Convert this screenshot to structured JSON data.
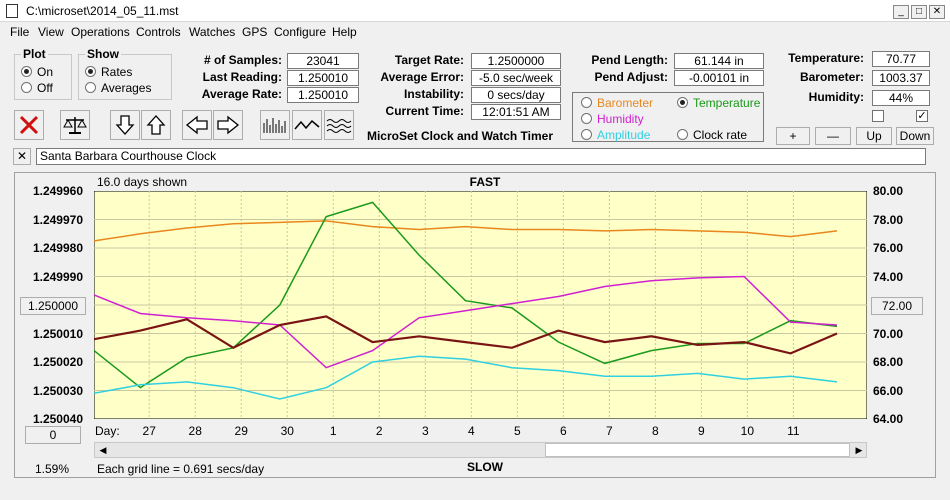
{
  "window": {
    "title": "C:\\microset\\2014_05_11.mst"
  },
  "menu": [
    "File",
    "View",
    "Operations",
    "Controls",
    "Watches",
    "GPS",
    "Configure",
    "Help"
  ],
  "plot_group": {
    "title": "Plot",
    "options": [
      {
        "label": "On",
        "selected": true
      },
      {
        "label": "Off",
        "selected": false
      }
    ]
  },
  "show_group": {
    "title": "Show",
    "options": [
      {
        "label": "Rates",
        "selected": true
      },
      {
        "label": "Averages",
        "selected": false
      }
    ]
  },
  "stats": {
    "samples_label": "# of Samples:",
    "samples": "23041",
    "last_reading_label": "Last Reading:",
    "last_reading": "1.250010",
    "average_rate_label": "Average Rate:",
    "average_rate": "1.250010",
    "target_rate_label": "Target Rate:",
    "target_rate": "1.2500000",
    "average_error_label": "Average Error:",
    "average_error": "-5.0 sec/week",
    "instability_label": "Instability:",
    "instability": "0 secs/day",
    "current_time_label": "Current Time:",
    "current_time": "12:01:51 AM",
    "pend_length_label": "Pend Length:",
    "pend_length": "61.144 in",
    "pend_adjust_label": "Pend Adjust:",
    "pend_adjust": "-0.00101 in",
    "temperature_label": "Temperature:",
    "temperature": "70.77",
    "barometer_label": "Barometer:",
    "barometer": "1003.37",
    "humidity_label": "Humidity:",
    "humidity": "44%"
  },
  "app_title": "MicroSet Clock and Watch Timer",
  "sensor_select": [
    {
      "label": "Barometer",
      "color": "#e8871e",
      "selected": false
    },
    {
      "label": "Temperature",
      "color": "#1a9a1a",
      "selected": true
    },
    {
      "label": "Humidity",
      "color": "#d020d0",
      "selected": false
    },
    {
      "label": "Clock rate",
      "color": "#000000",
      "selected": false
    },
    {
      "label": "Amplitude",
      "color": "#30d0e0",
      "selected": false
    }
  ],
  "scale_buttons": {
    "plus": "+",
    "minus": "—",
    "up": "Up",
    "down": "Down"
  },
  "checkboxes": [
    {
      "checked": false
    },
    {
      "checked": true
    }
  ],
  "clock_name": "Santa Barbara Courthouse Clock",
  "chart": {
    "days_shown": "16.0 days shown",
    "top_label": "FAST",
    "bottom_label": "SLOW",
    "grid_note": "Each grid line = 0.691 secs/day",
    "percent": "1.59%",
    "day_label": "Day:",
    "center_rate_button": "1.250000",
    "right_value_button": "72.00",
    "zero_button": "0"
  },
  "chart_data": {
    "type": "line",
    "left_axis_ticks": [
      "1.249960",
      "1.249970",
      "1.249980",
      "1.249990",
      "1.250000",
      "1.250010",
      "1.250020",
      "1.250030",
      "1.250040"
    ],
    "left_ylim": [
      1.24996,
      1.25004
    ],
    "right_axis_ticks": [
      "80.00",
      "78.00",
      "76.00",
      "74.00",
      "72.00",
      "70.00",
      "68.00",
      "66.00",
      "64.00"
    ],
    "right_ylim": [
      64,
      80
    ],
    "x_ticks": [
      "27",
      "28",
      "29",
      "30",
      "1",
      "2",
      "3",
      "4",
      "5",
      "6",
      "7",
      "8",
      "9",
      "10",
      "11"
    ],
    "x": [
      0,
      1,
      2,
      3,
      4,
      5,
      6,
      7,
      8,
      9,
      10,
      11,
      12,
      13,
      14,
      15,
      16
    ],
    "series": [
      {
        "color": "#e8871e",
        "axis": "right",
        "values": [
          76.5,
          77.0,
          77.4,
          77.7,
          77.8,
          77.9,
          77.5,
          77.3,
          77.5,
          77.3,
          77.3,
          77.2,
          77.3,
          77.2,
          77.1,
          76.8,
          77.2
        ]
      },
      {
        "color": "#1a9a1a",
        "axis": "right",
        "values": [
          68.8,
          66.2,
          68.3,
          69.0,
          72.0,
          78.2,
          79.2,
          75.5,
          72.3,
          71.8,
          69.4,
          67.9,
          68.8,
          69.3,
          69.3,
          70.9,
          70.5
        ]
      },
      {
        "color": "#d020d0",
        "axis": "right",
        "values": [
          72.7,
          71.4,
          71.1,
          70.9,
          70.6,
          67.6,
          68.8,
          71.1,
          71.6,
          72.1,
          72.6,
          73.3,
          73.7,
          73.9,
          74.0,
          70.8,
          70.6
        ]
      },
      {
        "color": "#7a1414",
        "axis": "left",
        "values": [
          1.250012,
          1.250009,
          1.250005,
          1.250015,
          1.250007,
          1.250004,
          1.250013,
          1.250011,
          1.250013,
          1.250015,
          1.250009,
          1.250013,
          1.250011,
          1.250014,
          1.250013,
          1.250017,
          1.25001
        ]
      },
      {
        "color": "#30d0e0",
        "axis": "left",
        "values": [
          1.250031,
          1.250028,
          1.250027,
          1.250029,
          1.250033,
          1.250029,
          1.25002,
          1.250018,
          1.250019,
          1.250022,
          1.250023,
          1.250025,
          1.250025,
          1.250024,
          1.250026,
          1.250025,
          1.250027
        ]
      }
    ]
  }
}
